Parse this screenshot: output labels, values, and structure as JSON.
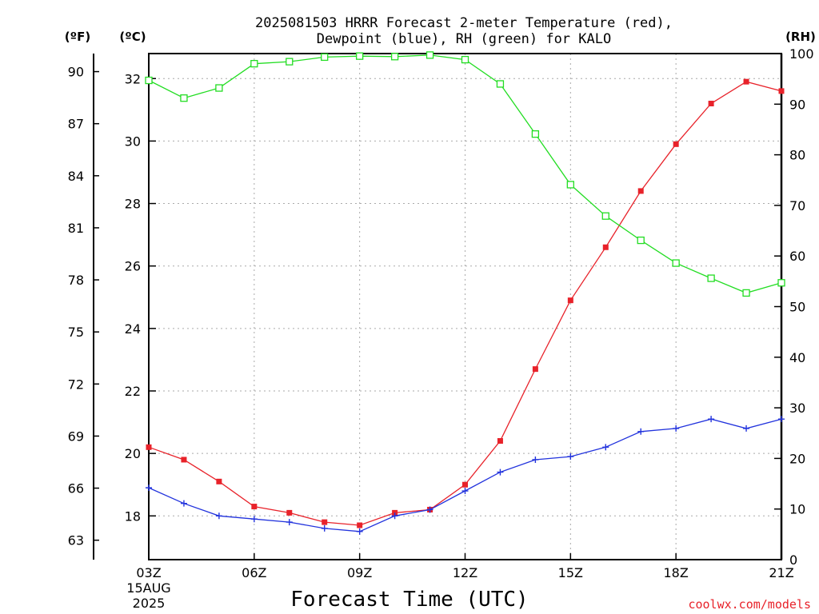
{
  "chart_data": {
    "type": "line",
    "title_line1": "2025081503 HRRR Forecast 2-meter Temperature (red),",
    "title_line2": "Dewpoint (blue), RH (green) for KALO",
    "unit_f": "(ºF)",
    "unit_c": "(ºC)",
    "unit_rh": "(RH)",
    "xlabel": "Forecast Time (UTC)",
    "credit": "coolwx.com/models",
    "date_line1": "15AUG",
    "date_line2": "2025",
    "x_hours": [
      3,
      4,
      5,
      6,
      7,
      8,
      9,
      10,
      11,
      12,
      13,
      14,
      15,
      16,
      17,
      18,
      19,
      20,
      21
    ],
    "x_ticks": [
      {
        "hour": 3,
        "label": "03Z"
      },
      {
        "hour": 6,
        "label": "06Z"
      },
      {
        "hour": 9,
        "label": "09Z"
      },
      {
        "hour": 12,
        "label": "12Z"
      },
      {
        "hour": 15,
        "label": "15Z"
      },
      {
        "hour": 18,
        "label": "18Z"
      },
      {
        "hour": 21,
        "label": "21Z"
      }
    ],
    "xlim": [
      3,
      21
    ],
    "c_ylim": [
      16.6,
      32.8
    ],
    "c_ticks": [
      18,
      20,
      22,
      24,
      26,
      28,
      30,
      32
    ],
    "f_ticks": [
      63,
      66,
      69,
      72,
      75,
      78,
      81,
      84,
      87,
      90
    ],
    "rh_ylim": [
      0,
      100
    ],
    "rh_ticks": [
      0,
      10,
      20,
      30,
      40,
      50,
      60,
      70,
      80,
      90,
      100
    ],
    "grid": true,
    "colors": {
      "temperature": "#e8222a",
      "dewpoint": "#2233dd",
      "rh": "#22dd22",
      "grid": "#aaaaaa",
      "credit": "#e8222a"
    },
    "series": [
      {
        "key": "temperature",
        "axis": "c",
        "marker": "square-filled",
        "values": [
          20.2,
          19.8,
          19.1,
          18.3,
          18.1,
          17.8,
          17.7,
          18.1,
          18.2,
          19.0,
          20.4,
          22.7,
          24.9,
          26.6,
          28.4,
          29.9,
          31.2,
          31.9,
          31.6
        ]
      },
      {
        "key": "dewpoint",
        "axis": "c",
        "marker": "plus",
        "values": [
          18.9,
          18.4,
          18.0,
          17.9,
          17.8,
          17.6,
          17.5,
          18.0,
          18.2,
          18.8,
          19.4,
          19.8,
          19.9,
          20.2,
          20.7,
          20.8,
          21.1,
          20.8,
          21.1
        ]
      },
      {
        "key": "rh",
        "axis": "rh",
        "marker": "square-open",
        "values": [
          94.7,
          91.2,
          93.2,
          98.0,
          98.4,
          99.3,
          99.5,
          99.4,
          99.7,
          98.8,
          94.0,
          84.1,
          74.1,
          67.9,
          63.1,
          58.6,
          55.6,
          52.7,
          54.7
        ]
      }
    ]
  }
}
